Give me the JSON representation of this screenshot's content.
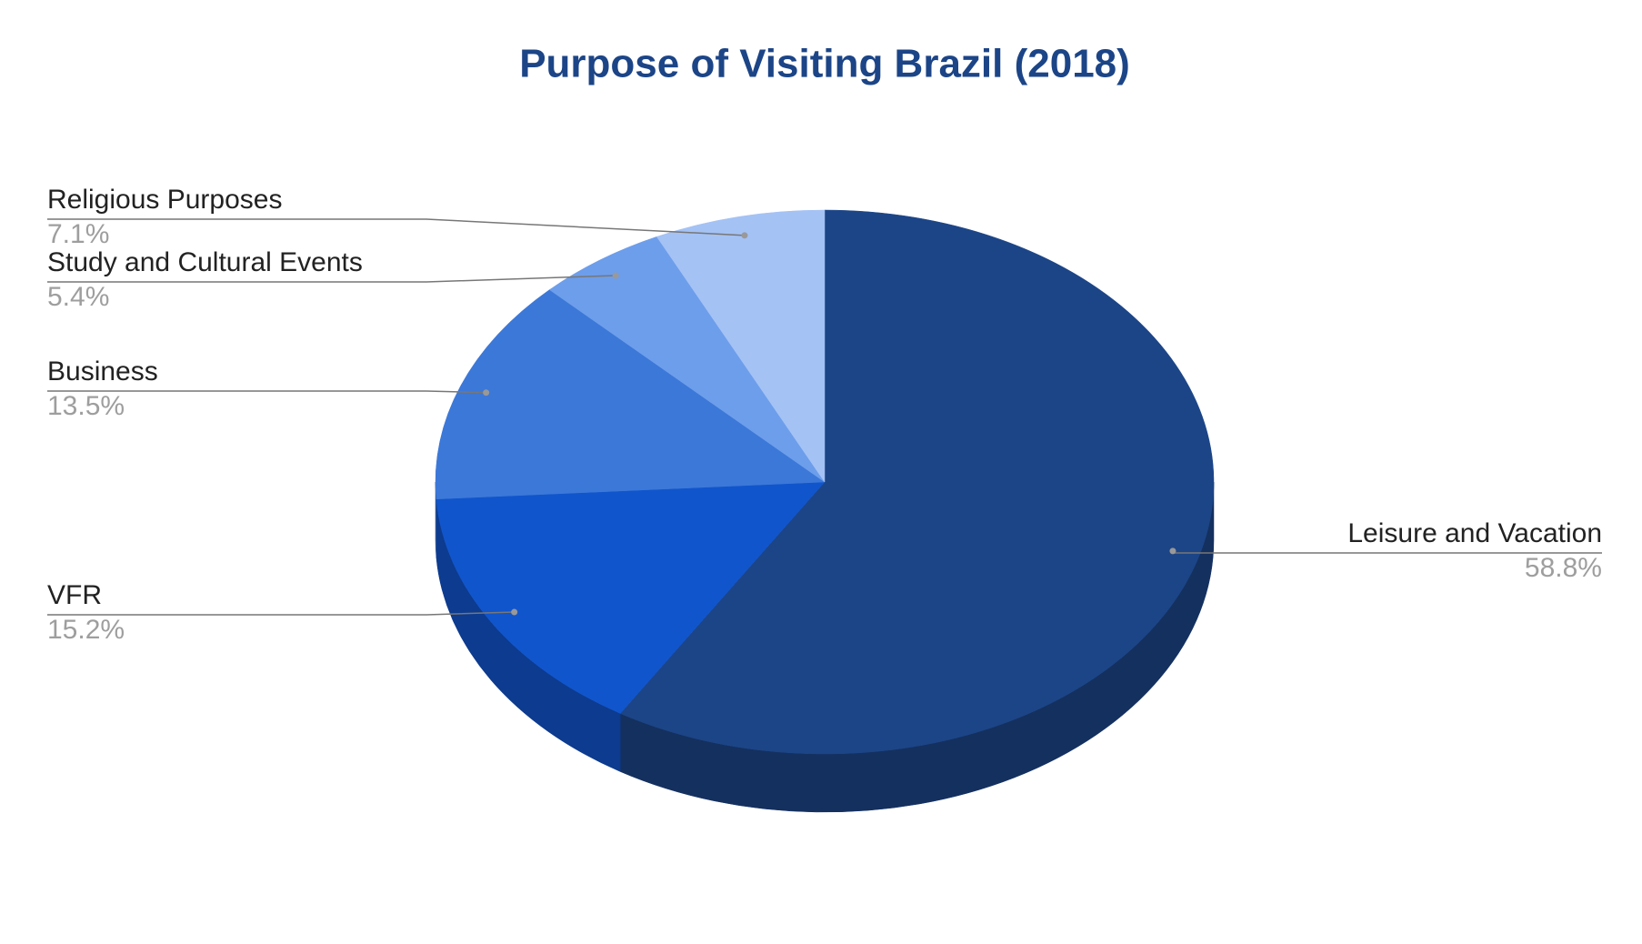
{
  "chart_data": {
    "type": "pie",
    "title": "Purpose of Visiting Brazil (2018)",
    "categories": [
      "Leisure and Vacation",
      "VFR",
      "Business",
      "Study and Cultural Events",
      "Religious Purposes"
    ],
    "values": [
      58.8,
      15.2,
      13.5,
      5.4,
      7.1
    ],
    "value_labels": [
      "58.8%",
      "15.2%",
      "13.5%",
      "5.4%",
      "7.1%"
    ],
    "colors": [
      "#1c4587",
      "#1155cc",
      "#3c78d8",
      "#6d9eeb",
      "#a4c2f4"
    ],
    "three_d": true
  }
}
